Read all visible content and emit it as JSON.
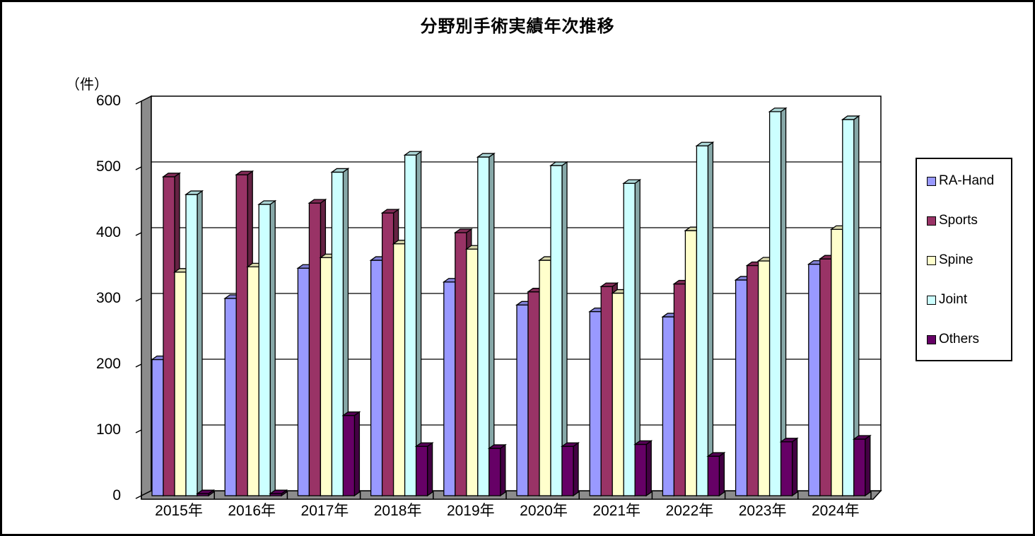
{
  "title": "分野別手術実績年次推移",
  "y_axis_unit": "（件）",
  "chart_data": {
    "type": "bar",
    "subtype": "3d-clustered-column",
    "title": "分野別手術実績年次推移",
    "ylabel": "（件）",
    "xlabel": "",
    "ylim": [
      0,
      600
    ],
    "yticks": [
      0,
      100,
      200,
      300,
      400,
      500,
      600
    ],
    "grid": true,
    "legend_position": "right",
    "background_color": "#FFFFFF",
    "wall_color": "#8C8C8C",
    "floor_color": "#8C8C8C",
    "categories": [
      "2015年",
      "2016年",
      "2017年",
      "2018年",
      "2019年",
      "2020年",
      "2021年",
      "2022年",
      "2023年",
      "2024年"
    ],
    "series": [
      {
        "name": "RA-Hand",
        "color": "#9999FF",
        "values": [
          207,
          300,
          346,
          358,
          325,
          290,
          280,
          272,
          328,
          352
        ]
      },
      {
        "name": "Sports",
        "color": "#993366",
        "values": [
          485,
          488,
          445,
          430,
          400,
          310,
          318,
          322,
          350,
          360
        ]
      },
      {
        "name": "Spine",
        "color": "#FFFFCC",
        "values": [
          340,
          348,
          362,
          383,
          375,
          358,
          308,
          403,
          357,
          405
        ]
      },
      {
        "name": "Joint",
        "color": "#CCFFFF",
        "values": [
          458,
          443,
          492,
          518,
          515,
          502,
          475,
          532,
          584,
          572
        ]
      },
      {
        "name": "Others",
        "color": "#660066",
        "values": [
          3,
          3,
          122,
          75,
          72,
          75,
          78,
          60,
          82,
          86
        ]
      }
    ]
  },
  "legend": {
    "items": [
      "RA-Hand",
      "Sports",
      "Spine",
      "Joint",
      "Others"
    ]
  }
}
